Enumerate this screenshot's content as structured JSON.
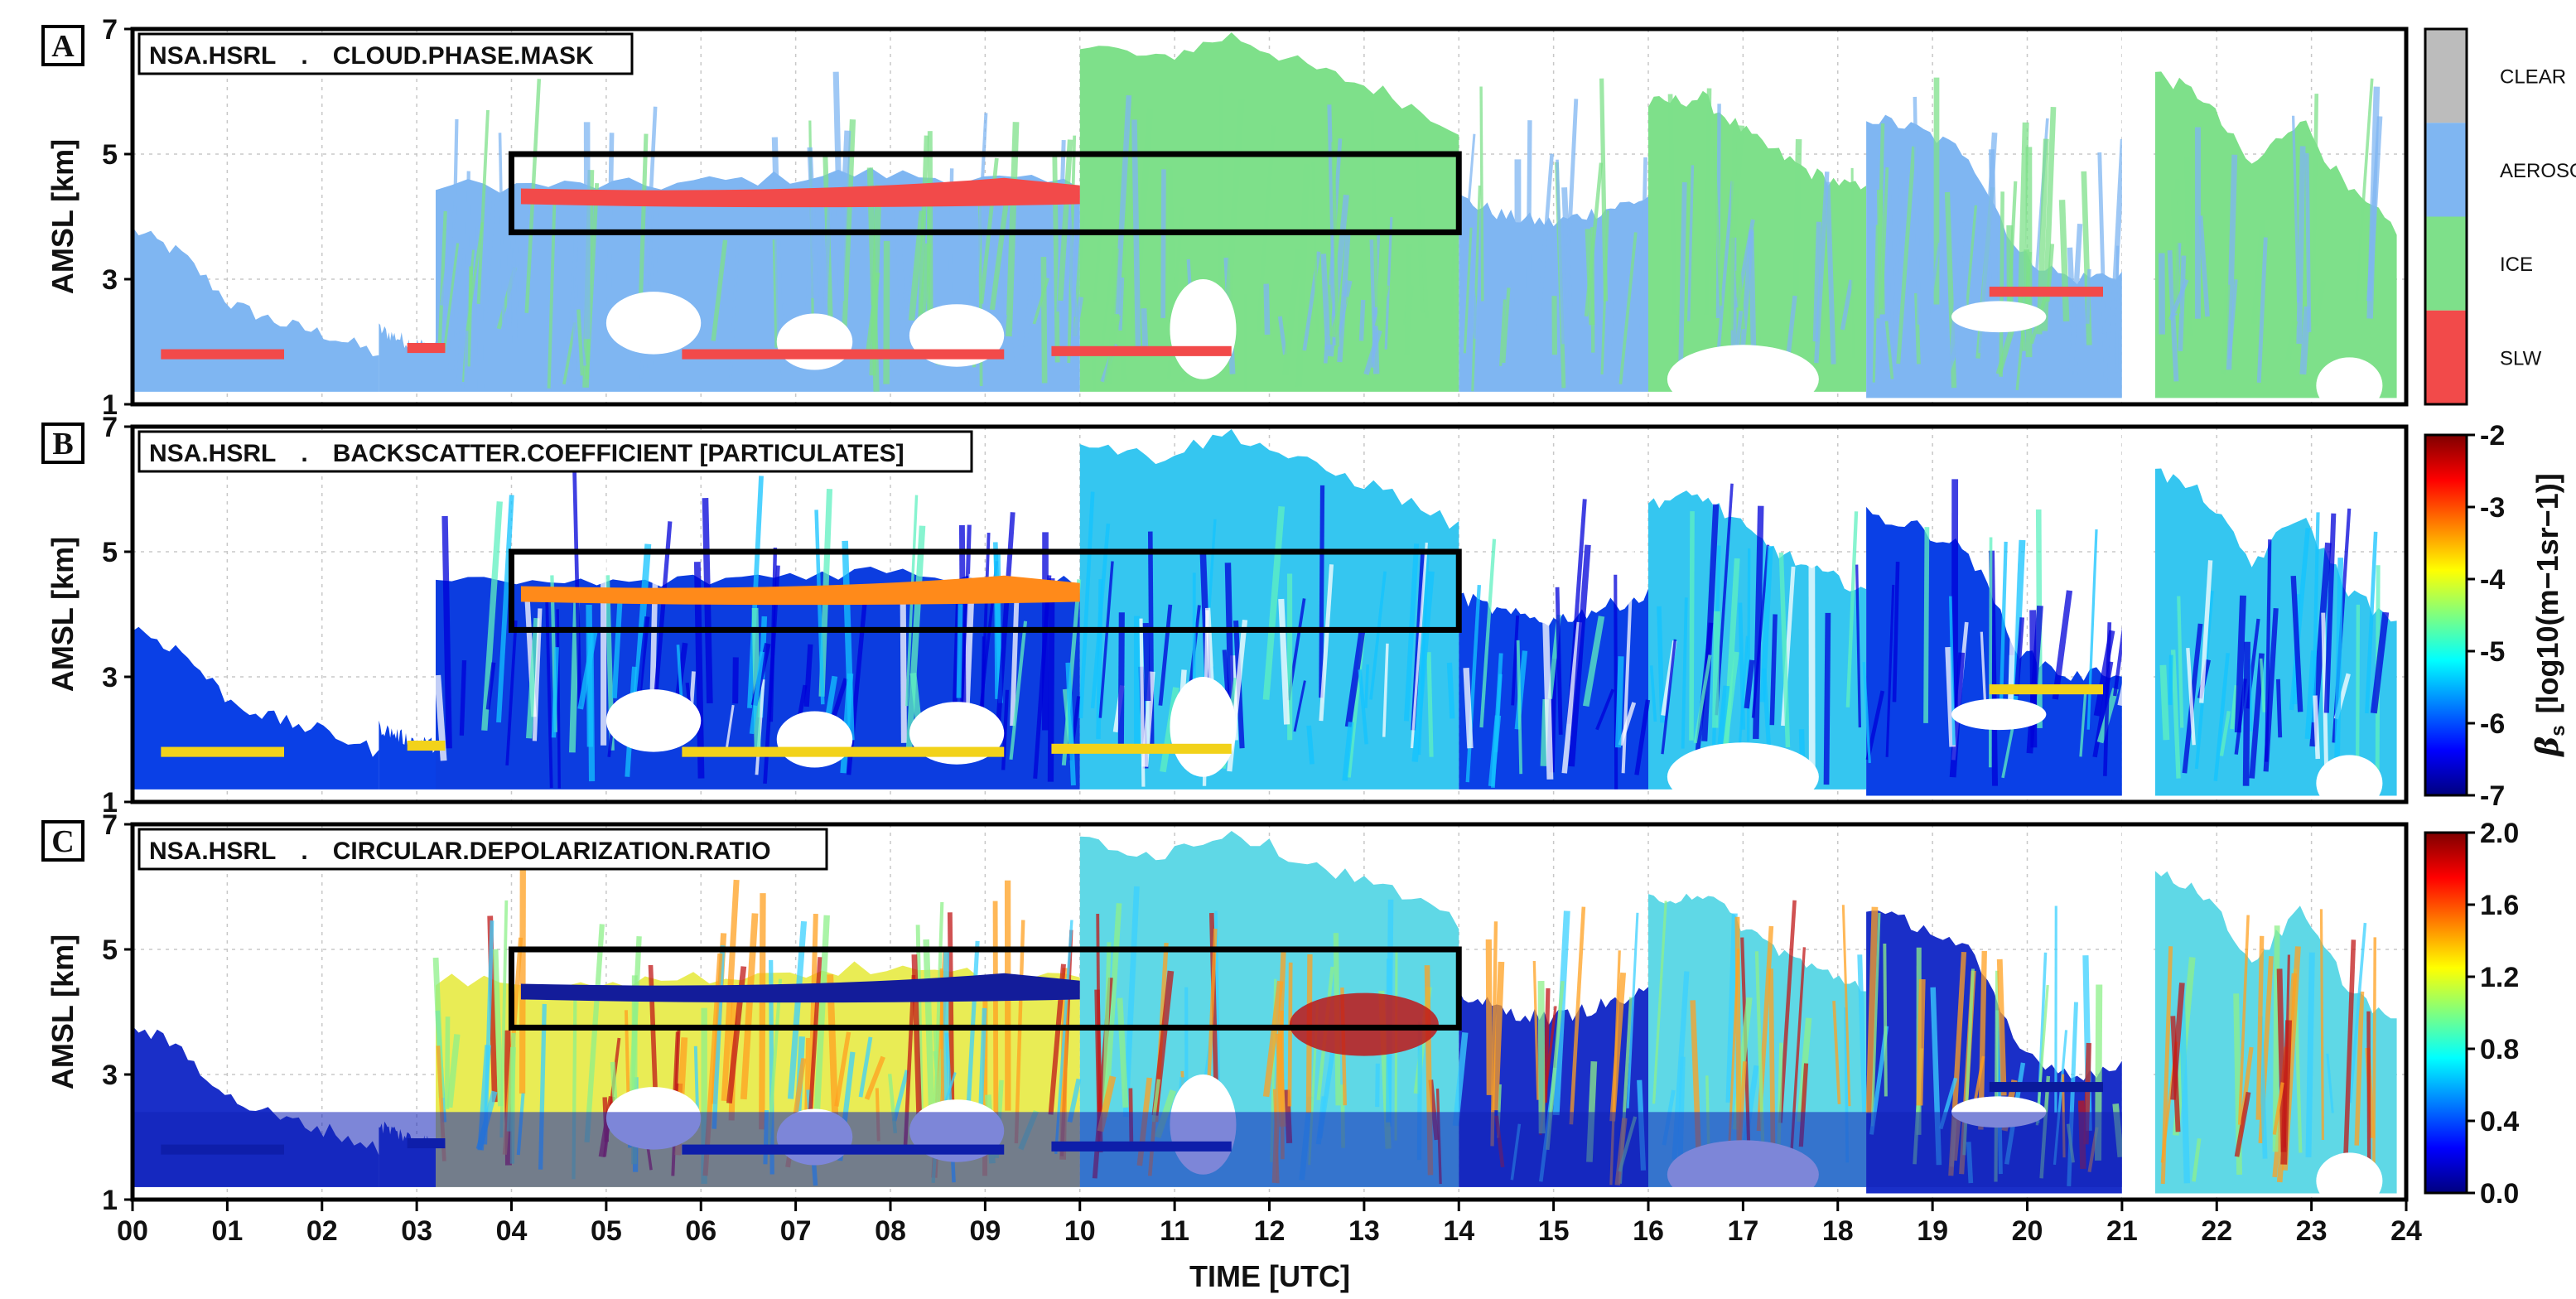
{
  "figure": {
    "xlabel": "TIME [UTC]",
    "x_ticks": [
      "00",
      "01",
      "02",
      "03",
      "04",
      "05",
      "06",
      "07",
      "08",
      "09",
      "10",
      "11",
      "12",
      "13",
      "14",
      "15",
      "16",
      "17",
      "18",
      "19",
      "20",
      "21",
      "22",
      "23",
      "24"
    ],
    "y_ticks": [
      "1",
      "3",
      "5",
      "7"
    ],
    "ylabel": "AMSL [km]",
    "highlight_box": {
      "x_start_utc": 4,
      "x_end_utc": 14,
      "y_low_km": 3.75,
      "y_high_km": 5.0
    },
    "data_gap_utc": [
      21.0,
      21.3
    ]
  },
  "chart_data": [
    {
      "type": "heatmap",
      "panel_label": "A",
      "title": "NSA.HSRL . CLOUD.PHASE.MASK",
      "title_parts": [
        "NSA.HSRL",
        ".",
        "CLOUD.PHASE.MASK"
      ],
      "xlabel": "TIME [UTC]",
      "ylabel": "AMSL [km]",
      "xlim": [
        0,
        24
      ],
      "ylim": [
        1,
        7
      ],
      "colorbar": {
        "type": "categorical",
        "categories": [
          "CLEAR",
          "AEROSOL",
          "ICE",
          "SLW"
        ],
        "colors": [
          "#bcbcbc",
          "#7fb6f2",
          "#7ee08a",
          "#f24a4a"
        ]
      }
    },
    {
      "type": "heatmap",
      "panel_label": "B",
      "title": "NSA.HSRL . BACKSCATTER.COEFFICIENT [PARTICULATES]",
      "title_parts": [
        "NSA.HSRL",
        ".",
        "BACKSCATTER.COEFFICIENT [PARTICULATES]"
      ],
      "xlabel": "TIME [UTC]",
      "ylabel": "AMSL [km]",
      "xlim": [
        0,
        24
      ],
      "ylim": [
        1,
        7
      ],
      "colorbar": {
        "type": "continuous",
        "label_symbol": "β",
        "label_sub": "s",
        "label_unit": "[log10(m−1sr−1)]",
        "range": [
          -7,
          -2
        ],
        "ticks": [
          "-2",
          "-3",
          "-4",
          "-5",
          "-6",
          "-7"
        ]
      }
    },
    {
      "type": "heatmap",
      "panel_label": "C",
      "title": "NSA.HSRL . CIRCULAR.DEPOLARIZATION.RATIO",
      "title_parts": [
        "NSA.HSRL",
        ".",
        "CIRCULAR.DEPOLARIZATION.RATIO"
      ],
      "xlabel": "TIME [UTC]",
      "ylabel": "AMSL [km]",
      "xlim": [
        0,
        24
      ],
      "ylim": [
        1,
        7
      ],
      "colorbar": {
        "type": "continuous",
        "range": [
          0.0,
          2.0
        ],
        "ticks": [
          "2.0",
          "1.6",
          "1.2",
          "0.8",
          "0.4",
          "0.0"
        ]
      }
    }
  ],
  "colormap": [
    "#00007f",
    "#0000ff",
    "#007fff",
    "#00ffff",
    "#7fff7f",
    "#ffff00",
    "#ff7f00",
    "#ff0000",
    "#7f0000"
  ]
}
